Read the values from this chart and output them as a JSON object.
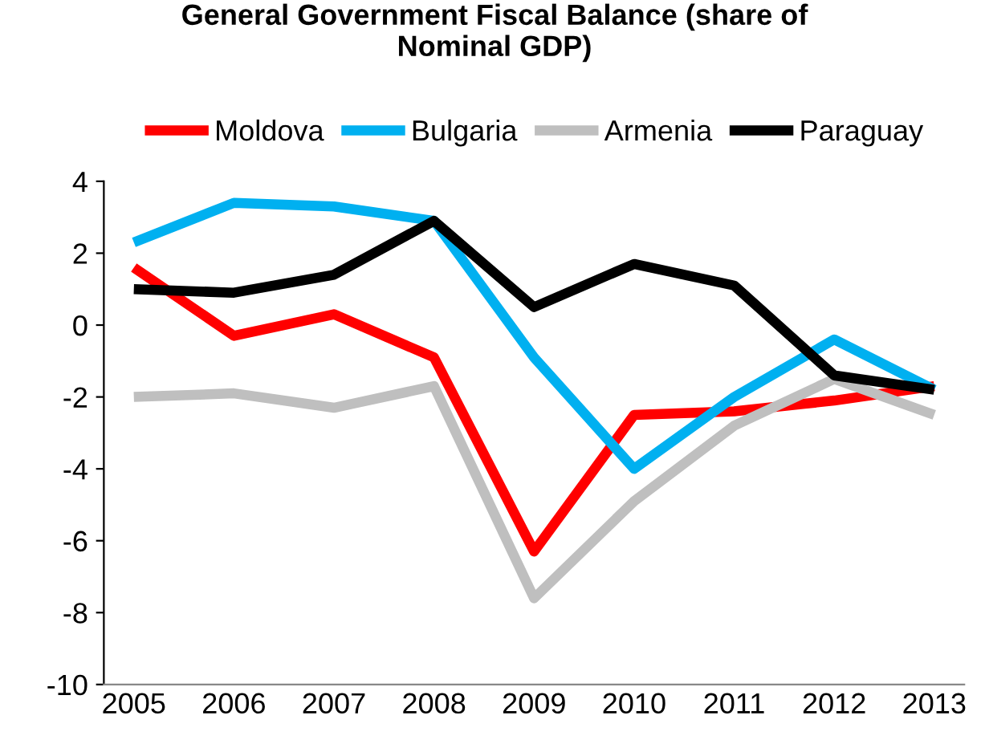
{
  "chart_data": {
    "type": "line",
    "title": "General Government Fiscal Balance (share of\nNominal GDP)",
    "categories": [
      "2005",
      "2006",
      "2007",
      "2008",
      "2009",
      "2010",
      "2011",
      "2012",
      "2013"
    ],
    "series": [
      {
        "name": "Moldova",
        "color": "#ff0000",
        "values": [
          1.6,
          -0.3,
          0.3,
          -0.9,
          -6.3,
          -2.5,
          -2.4,
          -2.1,
          -1.7
        ]
      },
      {
        "name": "Bulgaria",
        "color": "#00b0f0",
        "values": [
          2.3,
          3.4,
          3.3,
          2.9,
          -0.9,
          -4.0,
          -2.0,
          -0.4,
          -1.8
        ]
      },
      {
        "name": "Armenia",
        "color": "#bfbfbf",
        "values": [
          -2.0,
          -1.9,
          -2.3,
          -1.7,
          -7.6,
          -4.9,
          -2.8,
          -1.5,
          -2.5
        ]
      },
      {
        "name": "Paraguay",
        "color": "#000000",
        "values": [
          1.0,
          0.9,
          1.4,
          2.9,
          0.5,
          1.7,
          1.1,
          -1.4,
          -1.8
        ]
      }
    ],
    "ylim": [
      -10,
      4
    ],
    "yticks": [
      -10,
      -8,
      -6,
      -4,
      -2,
      0,
      2,
      4
    ],
    "grid": false,
    "legend": "top",
    "marker": "none",
    "line_style": "solid"
  }
}
